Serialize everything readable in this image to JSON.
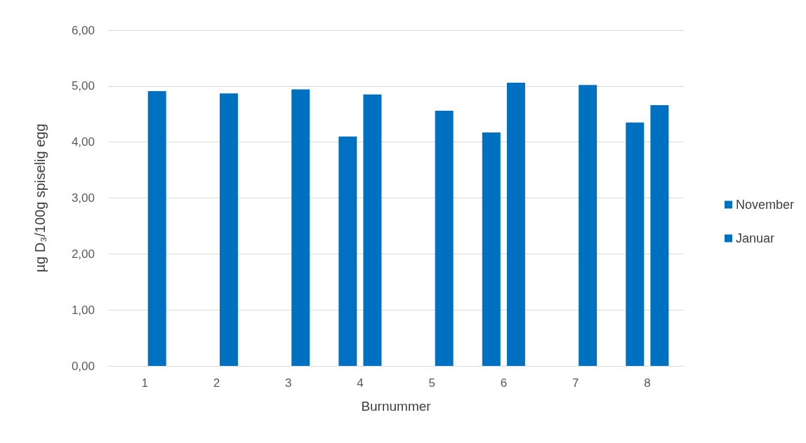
{
  "chart_data": {
    "type": "bar",
    "xlabel": "Burnummer",
    "ylabel": "µg D₃/100g spiselig egg",
    "categories": [
      "1",
      "2",
      "3",
      "4",
      "5",
      "6",
      "7",
      "8"
    ],
    "series": [
      {
        "name": "November",
        "color": "#0070c0",
        "values": [
          null,
          null,
          null,
          4.1,
          null,
          4.17,
          null,
          4.35
        ]
      },
      {
        "name": "Januar",
        "color": "#0070c0",
        "values": [
          4.91,
          4.87,
          4.94,
          4.85,
          4.56,
          5.06,
          5.02,
          4.66
        ]
      }
    ],
    "ylim": [
      0,
      6
    ],
    "yticks": [
      {
        "value": 0,
        "label": "0,00"
      },
      {
        "value": 1,
        "label": "1,00"
      },
      {
        "value": 2,
        "label": "2,00"
      },
      {
        "value": 3,
        "label": "3,00"
      },
      {
        "value": 4,
        "label": "4,00"
      },
      {
        "value": 5,
        "label": "5,00"
      },
      {
        "value": 6,
        "label": "6,00"
      }
    ],
    "grid": "y",
    "legend": "right"
  }
}
